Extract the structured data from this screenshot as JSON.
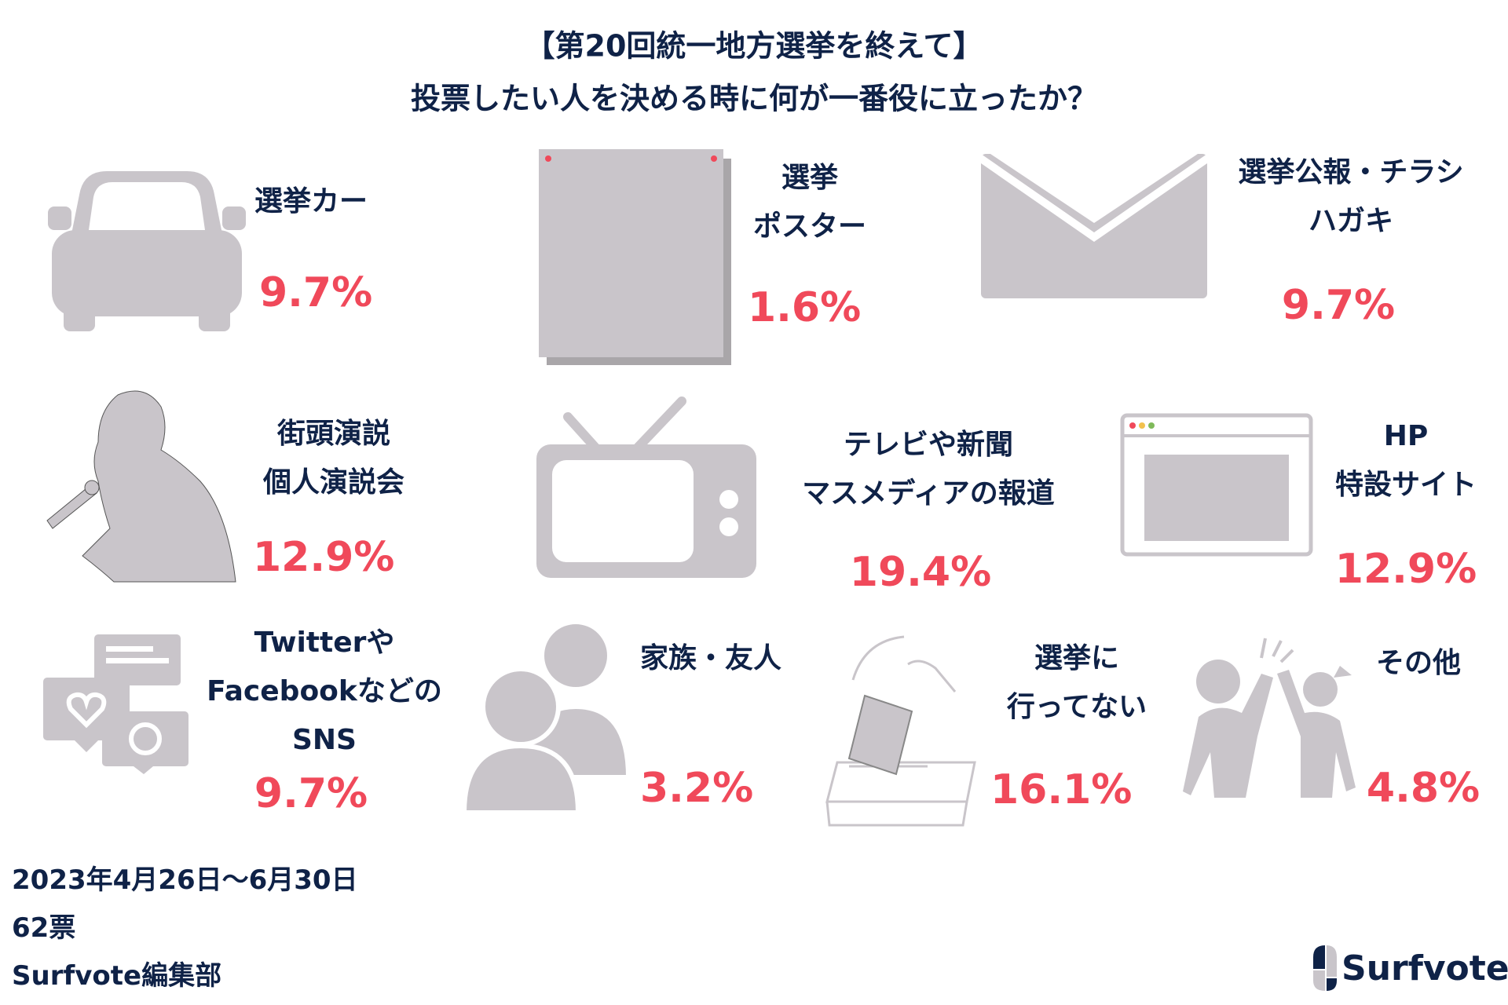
{
  "title": {
    "line1": "【第20回統一地方選挙を終えて】",
    "line2": "投票したい人を決める時に何が一番役に立ったか？"
  },
  "colors": {
    "text": "#0f2247",
    "percent": "#f0495a",
    "icon": "#c9c5ca"
  },
  "items": [
    {
      "label": [
        "選挙カー"
      ],
      "percent": "9.7%",
      "icon": "car-icon"
    },
    {
      "label": [
        "選挙",
        "ポスター"
      ],
      "percent": "1.6%",
      "icon": "poster-icon"
    },
    {
      "label": [
        "選挙公報・チラシ",
        "ハガキ"
      ],
      "percent": "9.7%",
      "icon": "envelope-icon"
    },
    {
      "label": [
        "街頭演説",
        "個人演説会"
      ],
      "percent": "12.9%",
      "icon": "speaker-icon"
    },
    {
      "label": [
        "テレビや新聞",
        "マスメディアの報道"
      ],
      "percent": "19.4%",
      "icon": "tv-icon"
    },
    {
      "label": [
        "HP",
        "特設サイト"
      ],
      "percent": "12.9%",
      "icon": "browser-icon"
    },
    {
      "label": [
        "Twitterや",
        "Facebookなどの",
        "SNS"
      ],
      "percent": "9.7%",
      "icon": "social-media-icon"
    },
    {
      "label": [
        "家族・友人"
      ],
      "percent": "3.2%",
      "icon": "people-icon"
    },
    {
      "label": [
        "選挙に",
        "行ってない"
      ],
      "percent": "16.1%",
      "icon": "ballot-box-icon"
    },
    {
      "label": [
        "その他"
      ],
      "percent": "4.8%",
      "icon": "high-five-icon"
    }
  ],
  "footer": {
    "period": "2023年4月26日〜6月30日",
    "votes": "62票",
    "editor": "Surfvote編集部"
  },
  "logo": {
    "text": "Surfvote"
  }
}
